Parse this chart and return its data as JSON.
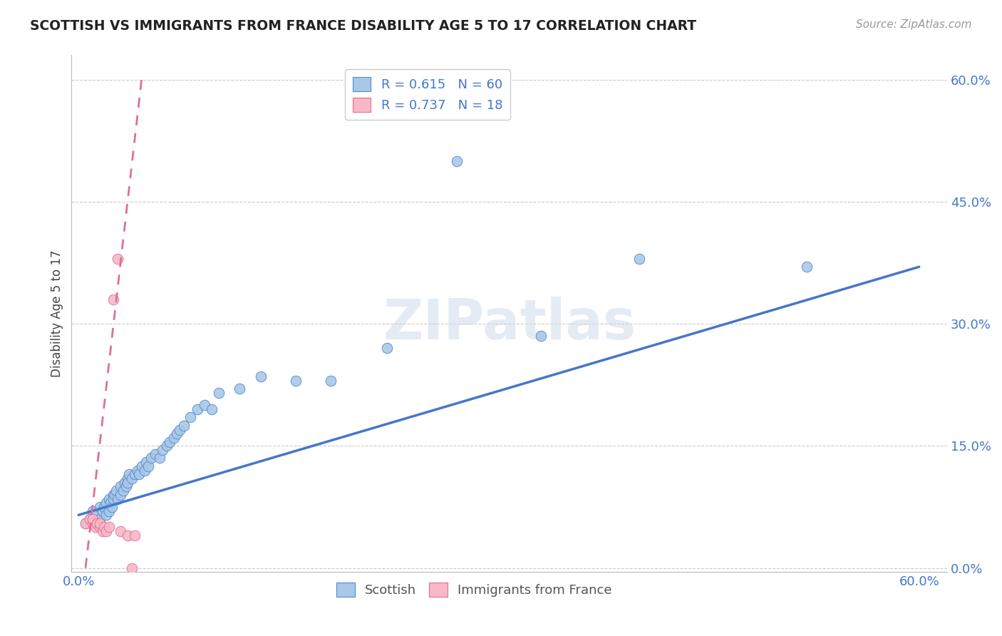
{
  "title": "SCOTTISH VS IMMIGRANTS FROM FRANCE DISABILITY AGE 5 TO 17 CORRELATION CHART",
  "source": "Source: ZipAtlas.com",
  "ylabel": "Disability Age 5 to 17",
  "ytick_vals": [
    0.0,
    0.15,
    0.3,
    0.45,
    0.6
  ],
  "xlim": [
    0.0,
    0.6
  ],
  "ylim": [
    0.0,
    0.6
  ],
  "r_scottish": 0.615,
  "n_scottish": 60,
  "r_france": 0.737,
  "n_france": 18,
  "color_scottish_fill": "#a8c8e8",
  "color_scottish_edge": "#5588cc",
  "color_france_fill": "#f8b8c8",
  "color_france_edge": "#e07090",
  "color_line_scottish": "#4477cc",
  "color_line_france": "#e07090",
  "color_text_blue": "#4477cc",
  "color_axis_text": "#4477cc",
  "scottish_x": [
    0.005,
    0.008,
    0.01,
    0.01,
    0.012,
    0.015,
    0.015,
    0.017,
    0.018,
    0.02,
    0.02,
    0.022,
    0.022,
    0.023,
    0.024,
    0.025,
    0.025,
    0.026,
    0.027,
    0.028,
    0.03,
    0.03,
    0.032,
    0.033,
    0.034,
    0.035,
    0.035,
    0.036,
    0.038,
    0.04,
    0.042,
    0.043,
    0.045,
    0.047,
    0.048,
    0.05,
    0.052,
    0.055,
    0.058,
    0.06,
    0.063,
    0.065,
    0.068,
    0.07,
    0.072,
    0.075,
    0.08,
    0.085,
    0.09,
    0.095,
    0.1,
    0.115,
    0.13,
    0.155,
    0.18,
    0.22,
    0.27,
    0.33,
    0.4,
    0.52
  ],
  "scottish_y": [
    0.055,
    0.06,
    0.055,
    0.07,
    0.065,
    0.06,
    0.075,
    0.07,
    0.075,
    0.065,
    0.08,
    0.07,
    0.085,
    0.08,
    0.075,
    0.09,
    0.085,
    0.09,
    0.095,
    0.085,
    0.09,
    0.1,
    0.095,
    0.105,
    0.1,
    0.11,
    0.105,
    0.115,
    0.11,
    0.115,
    0.12,
    0.115,
    0.125,
    0.12,
    0.13,
    0.125,
    0.135,
    0.14,
    0.135,
    0.145,
    0.15,
    0.155,
    0.16,
    0.165,
    0.17,
    0.175,
    0.185,
    0.195,
    0.2,
    0.195,
    0.215,
    0.22,
    0.235,
    0.23,
    0.23,
    0.27,
    0.5,
    0.285,
    0.38,
    0.37
  ],
  "france_x": [
    0.005,
    0.008,
    0.01,
    0.01,
    0.012,
    0.013,
    0.015,
    0.015,
    0.017,
    0.018,
    0.02,
    0.022,
    0.025,
    0.028,
    0.03,
    0.035,
    0.038,
    0.04
  ],
  "france_y": [
    0.055,
    0.06,
    0.055,
    0.06,
    0.05,
    0.055,
    0.05,
    0.055,
    0.045,
    0.05,
    0.045,
    0.05,
    0.33,
    0.38,
    0.045,
    0.04,
    0.0,
    0.04
  ],
  "line_scottish_x0": 0.0,
  "line_scottish_y0": 0.065,
  "line_scottish_x1": 0.6,
  "line_scottish_y1": 0.37,
  "line_france_x0": 0.005,
  "line_france_y0": 0.0,
  "line_france_x1": 0.045,
  "line_france_y1": 0.6
}
